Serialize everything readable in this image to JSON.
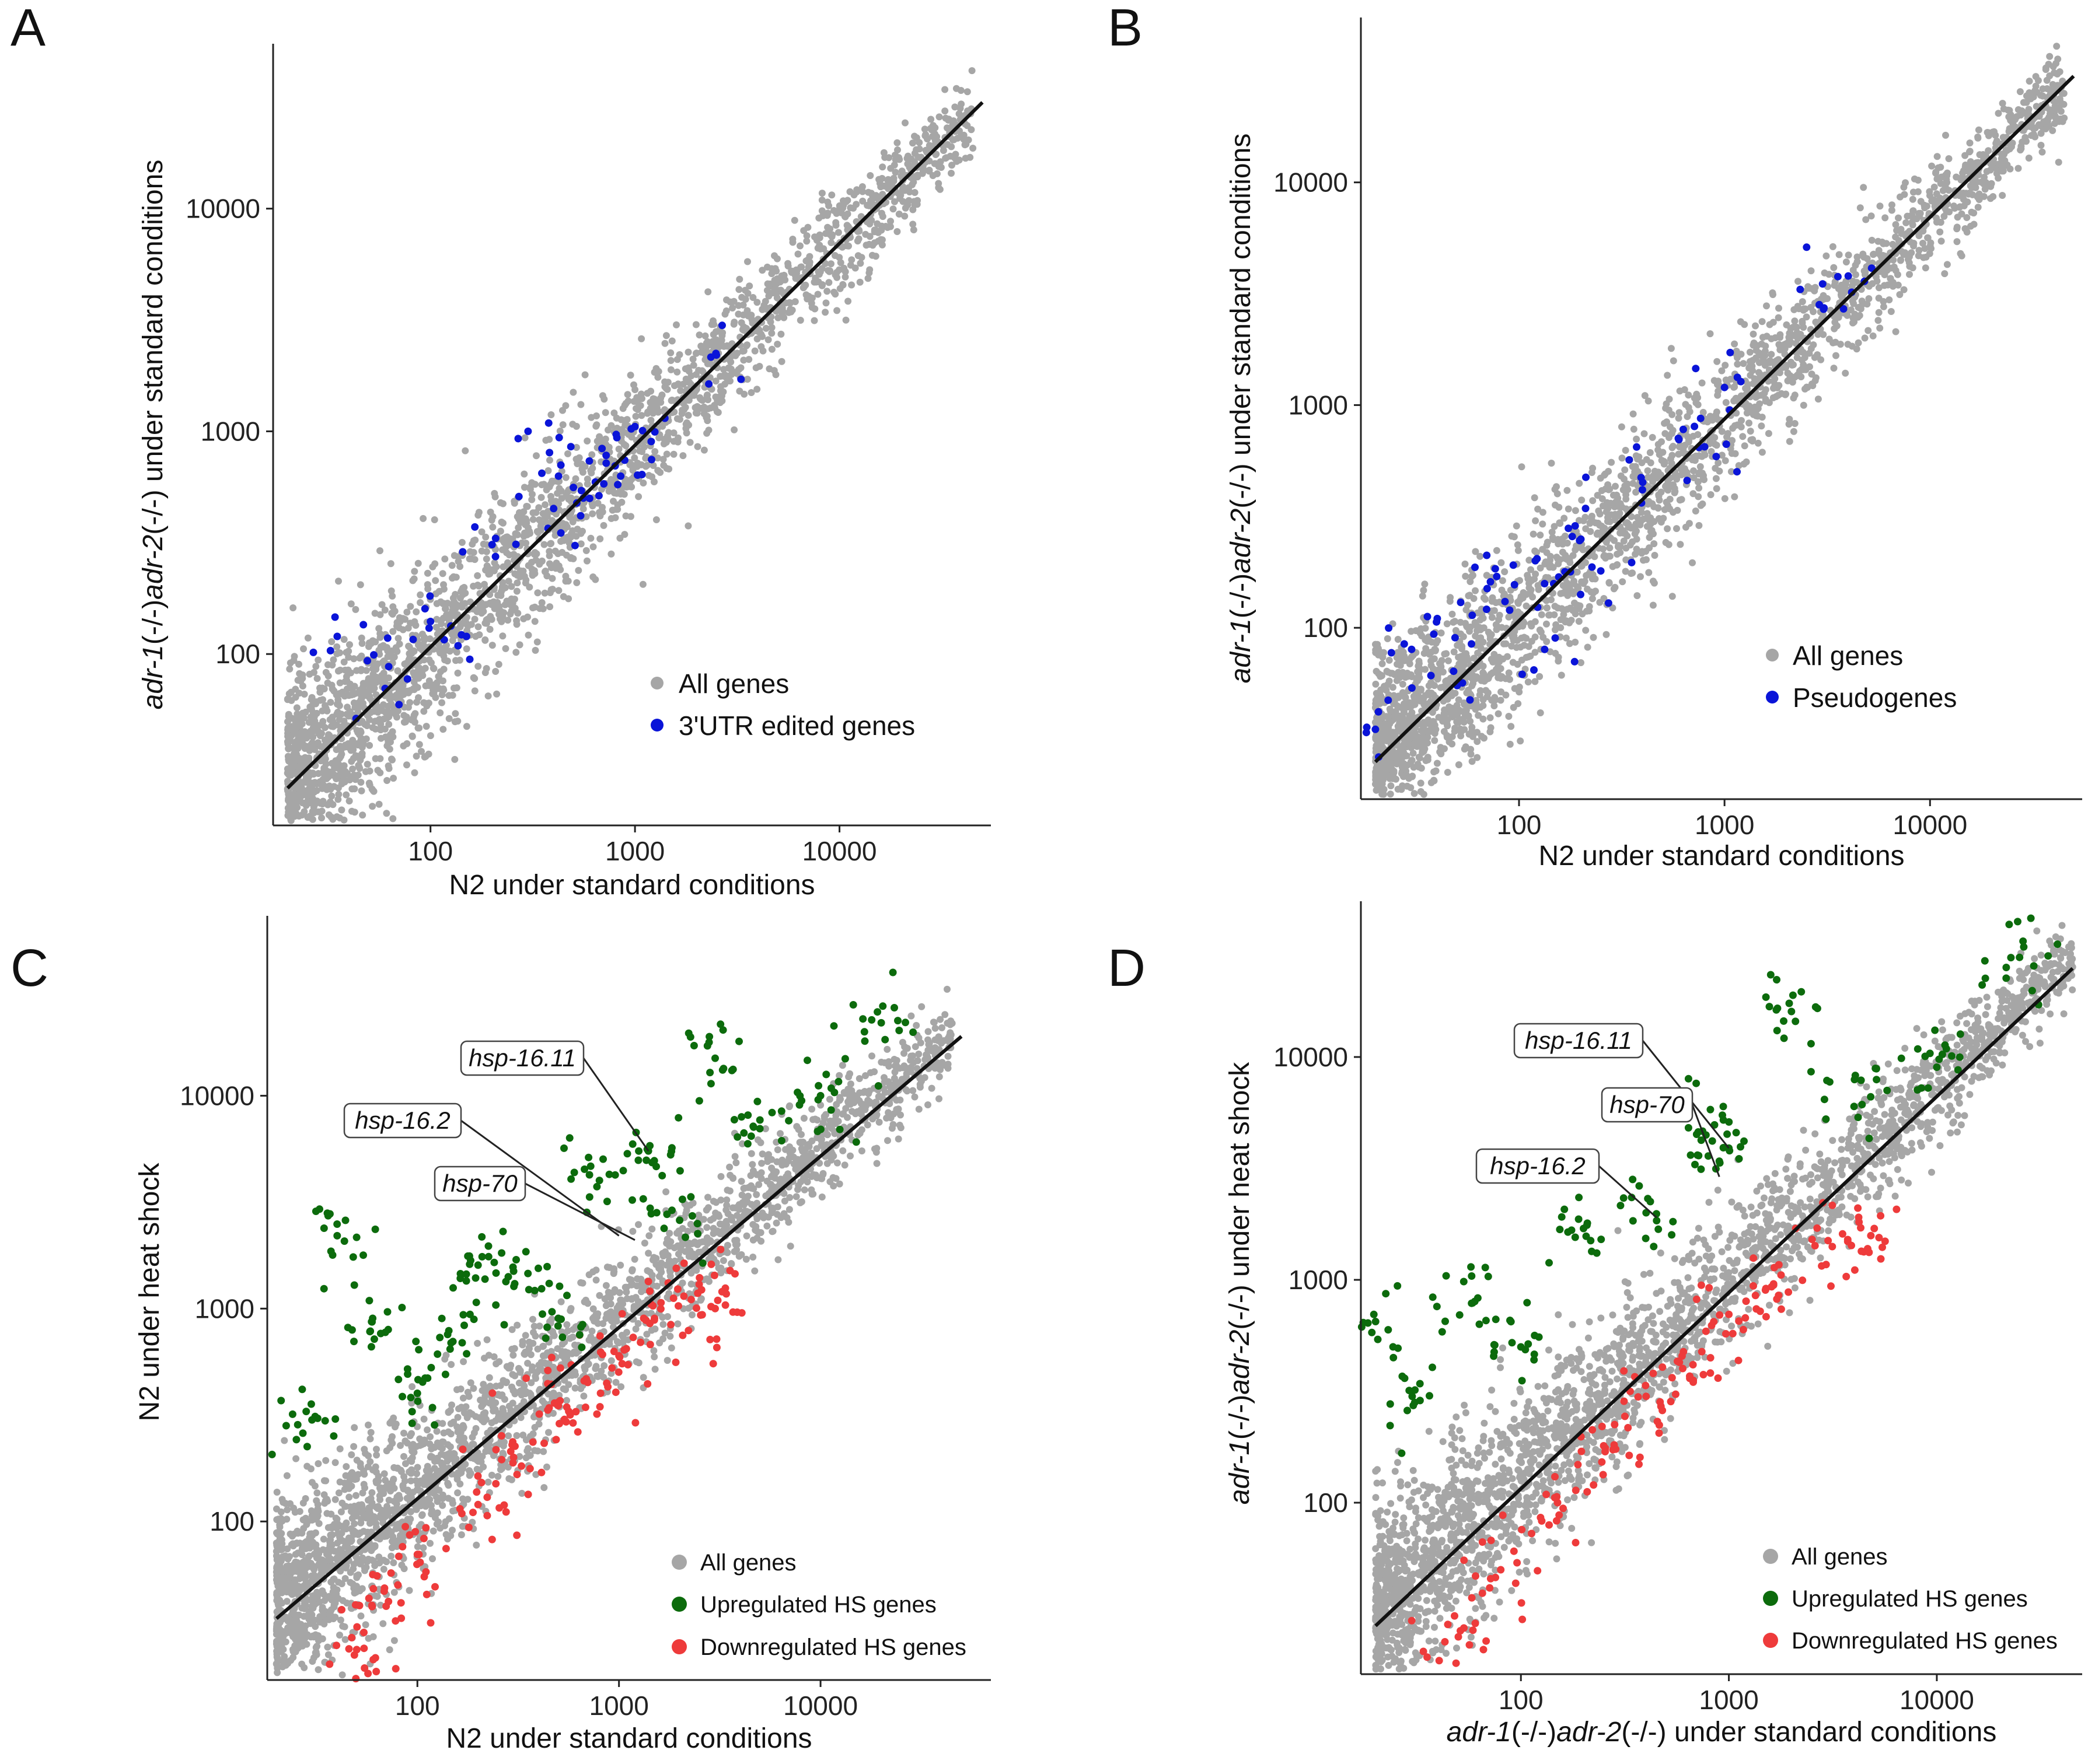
{
  "figure": {
    "colors": {
      "all_genes": "#a6a6a6",
      "edited": "#0a14d8",
      "pseudo": "#0a14d8",
      "up": "#0c6b0c",
      "down": "#ee3b3b",
      "line": "#111111"
    }
  },
  "chart_data": [
    {
      "panel": "A",
      "type": "scatter",
      "scale": "log10",
      "xlim": [
        17,
        55000
      ],
      "ylim": [
        17,
        55000
      ],
      "x_ticks": [
        100,
        1000,
        10000
      ],
      "y_ticks": [
        100,
        1000,
        10000
      ],
      "x_tick_labels": [
        "100",
        "1000",
        "10000"
      ],
      "y_tick_labels": [
        "100",
        "1000",
        "10000"
      ],
      "xlabel": "N2 under standard conditions",
      "ylabel": {
        "p1": "adr-1",
        "p2": "(-/-)",
        "p3": "adr-2",
        "p4": "(-/-) under standard conditions"
      },
      "fit_line": {
        "x": [
          20,
          50000
        ],
        "y": [
          25,
          30000
        ]
      },
      "legend": [
        "All genes",
        "3'UTR edited genes"
      ],
      "series": [
        {
          "name": "All genes",
          "points": [
            [
              20,
              25
            ],
            [
              40,
              55
            ],
            [
              100,
              120
            ],
            [
              300,
              340
            ],
            [
              1000,
              1100
            ],
            [
              3000,
              3300
            ],
            [
              10000,
              11000
            ],
            [
              40000,
              45000
            ]
          ]
        },
        {
          "name": "3'UTR edited genes",
          "points": [
            [
              35,
              120
            ],
            [
              60,
              70
            ],
            [
              100,
              140
            ],
            [
              150,
              120
            ],
            [
              200,
              310
            ],
            [
              300,
              1000
            ],
            [
              400,
              450
            ],
            [
              500,
              560
            ],
            [
              600,
              500
            ],
            [
              800,
              700
            ],
            [
              1000,
              1050
            ],
            [
              1200,
              900
            ],
            [
              2500,
              2200
            ]
          ]
        }
      ]
    },
    {
      "panel": "B",
      "type": "scatter",
      "scale": "log10",
      "xlim": [
        17,
        55000
      ],
      "ylim": [
        17,
        55000
      ],
      "x_ticks": [
        100,
        1000,
        10000
      ],
      "y_ticks": [
        100,
        1000,
        10000
      ],
      "x_tick_labels": [
        "100",
        "1000",
        "10000"
      ],
      "y_tick_labels": [
        "100",
        "1000",
        "10000"
      ],
      "xlabel": "N2 under standard conditions",
      "ylabel": {
        "p1": "adr-1",
        "p2": "(-/-)",
        "p3": "adr-2",
        "p4": "(-/-) under standard conditions"
      },
      "fit_line": {
        "x": [
          20,
          50000
        ],
        "y": [
          25,
          30000
        ]
      },
      "legend": [
        "All genes",
        "Pseudogenes"
      ],
      "series": [
        {
          "name": "All genes",
          "points": [
            [
              20,
              25
            ],
            [
              40,
              55
            ],
            [
              100,
              120
            ],
            [
              300,
              340
            ],
            [
              1000,
              1100
            ],
            [
              3000,
              3300
            ],
            [
              10000,
              11000
            ],
            [
              40000,
              45000
            ]
          ]
        },
        {
          "name": "Pseudogenes",
          "points": [
            [
              20,
              35
            ],
            [
              30,
              80
            ],
            [
              40,
              110
            ],
            [
              50,
              55
            ],
            [
              70,
              150
            ],
            [
              90,
              120
            ],
            [
              120,
              200
            ],
            [
              150,
              90
            ],
            [
              200,
              250
            ],
            [
              250,
              180
            ],
            [
              400,
              450
            ],
            [
              600,
              700
            ],
            [
              800,
              650
            ],
            [
              1000,
              1200
            ],
            [
              3000,
              3500
            ],
            [
              4000,
              3800
            ]
          ]
        }
      ]
    },
    {
      "panel": "C",
      "type": "scatter",
      "scale": "log10",
      "xlim": [
        18,
        70000
      ],
      "ylim": [
        18,
        70000
      ],
      "x_ticks": [
        100,
        1000,
        10000
      ],
      "y_ticks": [
        100,
        1000,
        10000
      ],
      "x_tick_labels": [
        "100",
        "1000",
        "10000"
      ],
      "y_tick_labels": [
        "100",
        "1000",
        "10000"
      ],
      "xlabel": "N2 under standard conditions",
      "ylabel": "N2 under heat shock",
      "fit_line": {
        "x": [
          20,
          50000
        ],
        "y": [
          35,
          19000
        ]
      },
      "legend": [
        "All genes",
        "Upregulated HS genes",
        "Downregulated HS genes"
      ],
      "annotations": [
        {
          "label": "hsp-16.11",
          "point": [
            1400,
            5500
          ]
        },
        {
          "label": "hsp-16.2",
          "point": [
            1000,
            2200
          ]
        },
        {
          "label": "hsp-70",
          "point": [
            1200,
            2100
          ]
        }
      ],
      "series": [
        {
          "name": "All genes",
          "points": [
            [
              20,
              30
            ],
            [
              50,
              60
            ],
            [
              100,
              150
            ],
            [
              300,
              300
            ],
            [
              1000,
              1000
            ],
            [
              3000,
              3000
            ],
            [
              10000,
              9000
            ],
            [
              40000,
              30000
            ]
          ]
        },
        {
          "name": "Upregulated HS genes",
          "points": [
            [
              30,
              300
            ],
            [
              40,
              2200
            ],
            [
              60,
              900
            ],
            [
              100,
              400
            ],
            [
              150,
              700
            ],
            [
              200,
              1600
            ],
            [
              300,
              1500
            ],
            [
              500,
              900
            ],
            [
              800,
              4000
            ],
            [
              1400,
              5500
            ],
            [
              2000,
              2600
            ],
            [
              3000,
              15000
            ],
            [
              5000,
              7000
            ],
            [
              10000,
              10000
            ],
            [
              20000,
              22000
            ]
          ]
        },
        {
          "name": "Downregulated HS genes",
          "points": [
            [
              50,
              25
            ],
            [
              70,
              40
            ],
            [
              100,
              70
            ],
            [
              200,
              120
            ],
            [
              300,
              200
            ],
            [
              500,
              350
            ],
            [
              700,
              450
            ],
            [
              1000,
              600
            ],
            [
              1500,
              900
            ],
            [
              2500,
              1300
            ],
            [
              3000,
              1000
            ]
          ]
        }
      ]
    },
    {
      "panel": "D",
      "type": "scatter",
      "scale": "log10",
      "xlim": [
        17,
        50000
      ],
      "ylim": [
        17,
        50000
      ],
      "x_ticks": [
        100,
        1000,
        10000
      ],
      "y_ticks": [
        100,
        1000,
        10000
      ],
      "x_tick_labels": [
        "100",
        "1000",
        "10000"
      ],
      "y_tick_labels": [
        "100",
        "1000",
        "10000"
      ],
      "xlabel": {
        "p1": "adr-1",
        "p2": "(-/-)",
        "p3": "adr-2",
        "p4": "(-/-) under standard conditions"
      },
      "ylabel": {
        "p1": "adr-1",
        "p2": "(-/-)",
        "p3": "adr-2",
        "p4": "(-/-) under heat shock"
      },
      "fit_line": {
        "x": [
          20,
          45000
        ],
        "y": [
          28,
          25000
        ]
      },
      "legend": [
        "All genes",
        "Upregulated HS genes",
        "Downregulated HS genes"
      ],
      "annotations": [
        {
          "label": "hsp-16.11",
          "point": [
            1000,
            3900
          ]
        },
        {
          "label": "hsp-70",
          "point": [
            900,
            2900
          ]
        },
        {
          "label": "hsp-16.2",
          "point": [
            450,
            1900
          ]
        }
      ],
      "series": [
        {
          "name": "All genes",
          "points": [
            [
              20,
              25
            ],
            [
              50,
              60
            ],
            [
              100,
              130
            ],
            [
              300,
              300
            ],
            [
              1000,
              1000
            ],
            [
              3000,
              3000
            ],
            [
              10000,
              9000
            ],
            [
              40000,
              35000
            ]
          ]
        },
        {
          "name": "Upregulated HS genes",
          "points": [
            [
              20,
              650
            ],
            [
              30,
              300
            ],
            [
              60,
              800
            ],
            [
              100,
              500
            ],
            [
              200,
              1700
            ],
            [
              400,
              2000
            ],
            [
              700,
              4500
            ],
            [
              1000,
              3900
            ],
            [
              2000,
              16000
            ],
            [
              4000,
              6000
            ],
            [
              10000,
              9000
            ],
            [
              25000,
              28000
            ]
          ]
        },
        {
          "name": "Downregulated HS genes",
          "points": [
            [
              50,
              25
            ],
            [
              80,
              50
            ],
            [
              150,
              100
            ],
            [
              250,
              180
            ],
            [
              400,
              300
            ],
            [
              600,
              400
            ],
            [
              1000,
              700
            ],
            [
              1500,
              900
            ],
            [
              3000,
              1500
            ],
            [
              5000,
              1700
            ]
          ]
        }
      ]
    }
  ]
}
